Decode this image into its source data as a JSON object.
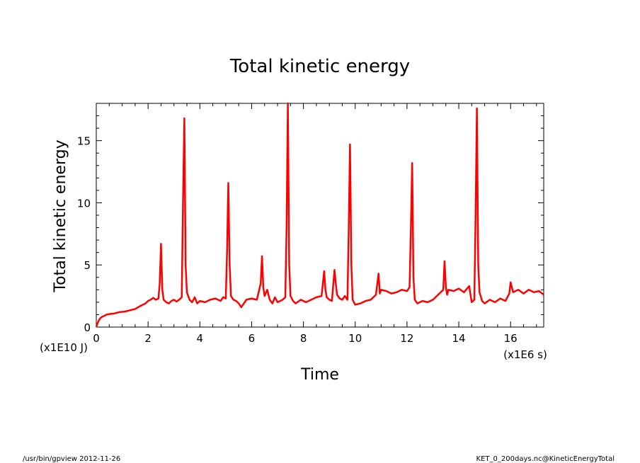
{
  "chart_data": {
    "type": "line",
    "title": "Total kinetic energy",
    "xlabel": "Time",
    "ylabel": "Total kinetic energy",
    "x_unit": "(x1E6 s)",
    "y_unit": "(x1E10 J)",
    "xlim": [
      0,
      17.28
    ],
    "ylim": [
      0,
      18
    ],
    "x_ticks": [
      0,
      2,
      4,
      6,
      8,
      10,
      12,
      14,
      16
    ],
    "y_ticks": [
      0,
      5,
      10,
      15
    ],
    "grid": false,
    "line_color": "#ff0000",
    "series": [
      {
        "x": [
          0,
          0.05,
          0.1,
          0.15,
          0.2,
          0.3,
          0.4,
          0.5,
          0.7,
          0.9,
          1.1,
          1.3,
          1.5,
          1.7,
          1.8,
          1.9,
          2.0,
          2.1,
          2.2,
          2.3,
          2.4,
          2.45,
          2.5,
          2.55,
          2.6,
          2.7,
          2.8,
          2.9,
          3.0,
          3.1,
          3.2,
          3.3,
          3.35,
          3.4,
          3.45,
          3.5,
          3.6,
          3.7,
          3.8,
          3.9,
          4.0,
          4.2,
          4.4,
          4.6,
          4.8,
          4.9,
          5.0,
          5.05,
          5.1,
          5.15,
          5.2,
          5.3,
          5.4,
          5.5,
          5.6,
          5.8,
          6.0,
          6.2,
          6.35,
          6.4,
          6.45,
          6.5,
          6.6,
          6.7,
          6.8,
          6.9,
          7.0,
          7.2,
          7.3,
          7.35,
          7.4,
          7.45,
          7.5,
          7.6,
          7.7,
          7.9,
          8.1,
          8.3,
          8.5,
          8.7,
          8.8,
          8.85,
          8.9,
          9.0,
          9.1,
          9.2,
          9.25,
          9.3,
          9.4,
          9.5,
          9.6,
          9.7,
          9.75,
          9.8,
          9.85,
          9.9,
          10.0,
          10.2,
          10.4,
          10.6,
          10.8,
          10.9,
          10.95,
          11.0,
          11.2,
          11.4,
          11.6,
          11.8,
          12.0,
          12.1,
          12.15,
          12.2,
          12.25,
          12.3,
          12.4,
          12.6,
          12.8,
          13.0,
          13.2,
          13.4,
          13.45,
          13.5,
          13.55,
          13.6,
          13.8,
          14.0,
          14.2,
          14.4,
          14.5,
          14.6,
          14.65,
          14.7,
          14.75,
          14.8,
          14.9,
          15.0,
          15.2,
          15.4,
          15.6,
          15.8,
          15.95,
          16.0,
          16.1,
          16.3,
          16.5,
          16.7,
          16.9,
          17.1,
          17.28
        ],
        "values": [
          0,
          0.3,
          0.55,
          0.7,
          0.8,
          0.9,
          1.0,
          1.05,
          1.1,
          1.2,
          1.25,
          1.35,
          1.45,
          1.7,
          1.8,
          1.9,
          2.1,
          2.2,
          2.35,
          2.2,
          2.3,
          3.5,
          6.7,
          3.0,
          2.2,
          2.0,
          1.9,
          2.1,
          2.2,
          2.05,
          2.2,
          2.4,
          10.0,
          16.8,
          5.0,
          2.8,
          2.2,
          2.0,
          2.4,
          1.9,
          2.1,
          2.0,
          2.2,
          2.3,
          2.1,
          2.4,
          2.3,
          6.0,
          11.6,
          5.0,
          2.5,
          2.2,
          2.1,
          1.9,
          1.6,
          2.2,
          2.3,
          2.2,
          3.5,
          5.7,
          3.2,
          2.5,
          3.0,
          2.2,
          1.9,
          2.4,
          2.0,
          2.2,
          2.4,
          8.0,
          18.0,
          5.0,
          2.5,
          2.1,
          1.9,
          2.2,
          2.0,
          2.2,
          2.4,
          2.5,
          4.5,
          3.0,
          2.4,
          2.2,
          2.1,
          4.6,
          3.5,
          2.6,
          2.3,
          2.2,
          2.5,
          2.2,
          8.0,
          14.7,
          5.0,
          2.2,
          1.8,
          1.9,
          2.1,
          2.2,
          2.6,
          4.3,
          2.7,
          3.0,
          2.9,
          2.7,
          2.8,
          3.0,
          2.9,
          3.2,
          8.0,
          13.2,
          4.0,
          2.2,
          1.9,
          2.1,
          2.0,
          2.2,
          2.6,
          3.0,
          5.3,
          3.2,
          2.6,
          3.0,
          2.9,
          3.1,
          2.8,
          3.3,
          2.0,
          2.2,
          9.0,
          17.6,
          5.0,
          2.8,
          2.1,
          1.9,
          2.2,
          2.0,
          2.3,
          2.1,
          2.7,
          3.6,
          2.8,
          3.0,
          2.7,
          3.0,
          2.8,
          2.9,
          2.6
        ]
      }
    ]
  },
  "footer": {
    "left": "/usr/bin/gpview  2012-11-26",
    "right": "KET_0_200days.nc@KineticEnergyTotal"
  }
}
